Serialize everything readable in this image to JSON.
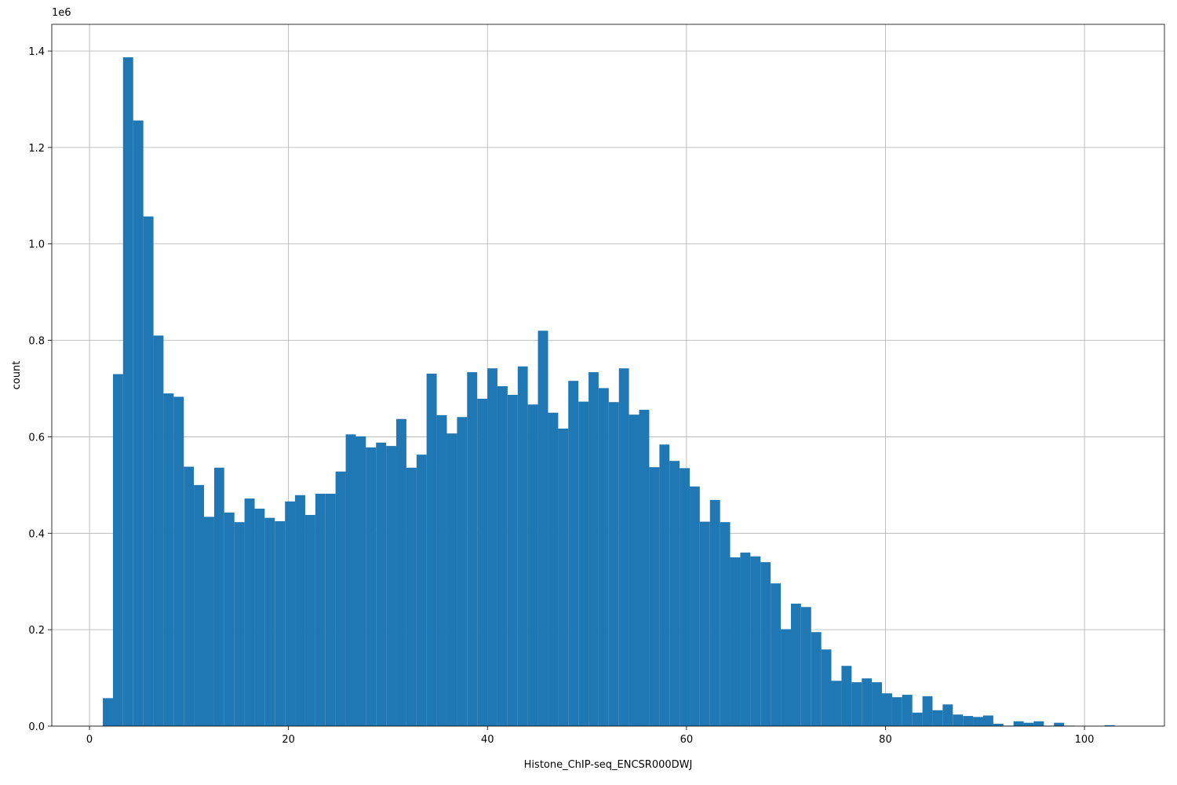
{
  "chart_data": {
    "type": "histogram",
    "xlabel": "Histone_ChIP-seq_ENCSR000DWJ",
    "ylabel": "count",
    "y_offset_label": "1e6",
    "color": "#1f77b4",
    "grid": true,
    "xlim": [
      -3.79,
      108.04
    ],
    "ylim": [
      0,
      1455400
    ],
    "xticks": [
      0,
      20,
      40,
      60,
      80,
      100
    ],
    "yticks": [
      {
        "value": 0,
        "label": "0.0"
      },
      {
        "value": 200000,
        "label": "0.2"
      },
      {
        "value": 400000,
        "label": "0.4"
      },
      {
        "value": 600000,
        "label": "0.6"
      },
      {
        "value": 800000,
        "label": "0.8"
      },
      {
        "value": 1000000,
        "label": "1.0"
      },
      {
        "value": 1200000,
        "label": "1.2"
      },
      {
        "value": 1400000,
        "label": "1.4"
      }
    ],
    "bins": [
      1.34,
      2.36,
      3.37,
      4.39,
      5.41,
      6.43,
      7.44,
      8.46,
      9.48,
      10.49,
      11.51,
      12.53,
      13.54,
      14.56,
      15.58,
      16.6,
      17.61,
      18.63,
      19.65,
      20.66,
      21.68,
      22.7,
      23.71,
      24.73,
      25.75,
      26.77,
      27.78,
      28.8,
      29.82,
      30.83,
      31.85,
      32.87,
      33.88,
      34.9,
      35.92,
      36.94,
      37.95,
      38.97,
      39.99,
      41.0,
      42.02,
      43.04,
      44.05,
      45.07,
      46.09,
      47.11,
      48.12,
      49.14,
      50.16,
      51.17,
      52.19,
      53.21,
      54.22,
      55.24,
      56.26,
      57.28,
      58.29,
      59.31,
      60.33,
      61.34,
      62.36,
      63.38,
      64.39,
      65.41,
      66.43,
      67.45,
      68.46,
      69.48,
      70.5,
      71.51,
      72.53,
      73.55,
      74.56,
      75.58,
      76.6,
      77.62,
      78.63,
      79.65,
      80.67,
      81.68,
      82.7,
      83.72,
      84.73,
      85.75,
      86.77,
      87.79,
      88.8,
      89.82,
      90.84,
      91.85,
      92.87,
      93.89,
      94.9,
      95.92,
      96.94,
      97.96,
      98.97,
      99.99,
      101.01,
      102.02,
      103.04
    ],
    "counts": [
      58000,
      730000,
      1387000,
      1256000,
      1057000,
      810000,
      690000,
      683000,
      538000,
      500000,
      434000,
      536000,
      443000,
      423000,
      472000,
      451000,
      432000,
      425000,
      466000,
      479000,
      438000,
      482000,
      482000,
      528000,
      605000,
      601000,
      578000,
      588000,
      581000,
      637000,
      536000,
      563000,
      731000,
      645000,
      607000,
      641000,
      734000,
      679000,
      742000,
      705000,
      687000,
      746000,
      667000,
      820000,
      650000,
      617000,
      716000,
      673000,
      734000,
      701000,
      672000,
      742000,
      646000,
      656000,
      537000,
      584000,
      550000,
      535000,
      497000,
      424000,
      469000,
      423000,
      350000,
      360000,
      352000,
      340000,
      296000,
      201000,
      254000,
      247000,
      195000,
      159000,
      94000,
      125000,
      91000,
      99000,
      91000,
      68000,
      60000,
      65000,
      28000,
      62000,
      33000,
      45000,
      24000,
      21000,
      19000,
      22000,
      5000,
      1000,
      10000,
      7000,
      10000,
      1000,
      7000,
      1000,
      0,
      0,
      0,
      2000
    ]
  }
}
